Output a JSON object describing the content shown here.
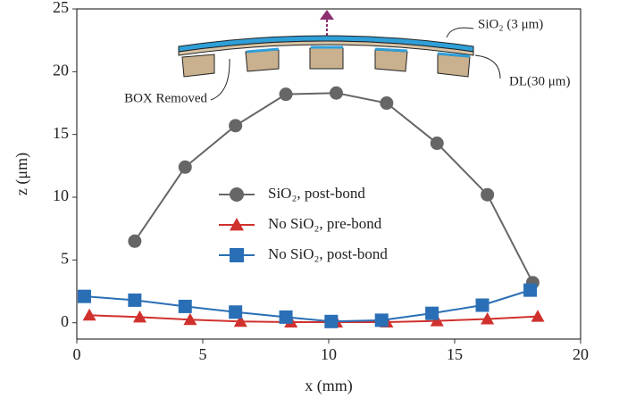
{
  "chart_data": {
    "type": "line",
    "xlabel": "x (mm)",
    "ylabel": "z (μm)",
    "xlim": [
      0,
      20
    ],
    "ylim": [
      -1.3,
      25
    ],
    "xticks": [
      0,
      5,
      10,
      15,
      20
    ],
    "yticks": [
      0,
      5,
      10,
      15,
      20,
      25
    ],
    "grid": false,
    "legend": "center",
    "annotations": [
      "SiO₂ (3 μm)",
      "DL(30 μm)",
      "BOX Removed"
    ],
    "series": [
      {
        "name": "SiO₂, post-bond",
        "color": "#666666",
        "marker": "circle",
        "x": [
          2.3,
          4.3,
          6.3,
          8.3,
          10.3,
          12.3,
          14.3,
          16.3,
          18.1
        ],
        "values": [
          6.5,
          12.4,
          15.7,
          18.2,
          18.3,
          17.5,
          14.3,
          10.2,
          3.2
        ]
      },
      {
        "name": "No SiO₂, pre-bond",
        "color": "#d0312d",
        "marker": "triangle",
        "x": [
          0.5,
          2.5,
          4.5,
          6.5,
          8.5,
          10.3,
          12.3,
          14.3,
          16.3,
          18.3
        ],
        "values": [
          0.6,
          0.45,
          0.25,
          0.1,
          0.05,
          0.05,
          0.05,
          0.15,
          0.3,
          0.5
        ]
      },
      {
        "name": "No SiO₂, post-bond",
        "color": "#2a6fb5",
        "marker": "square",
        "x": [
          0.3,
          2.3,
          4.3,
          6.3,
          8.3,
          10.1,
          12.1,
          14.1,
          16.1,
          18.0
        ],
        "values": [
          2.1,
          1.8,
          1.3,
          0.85,
          0.45,
          0.1,
          0.2,
          0.75,
          1.4,
          2.6
        ]
      }
    ]
  }
}
